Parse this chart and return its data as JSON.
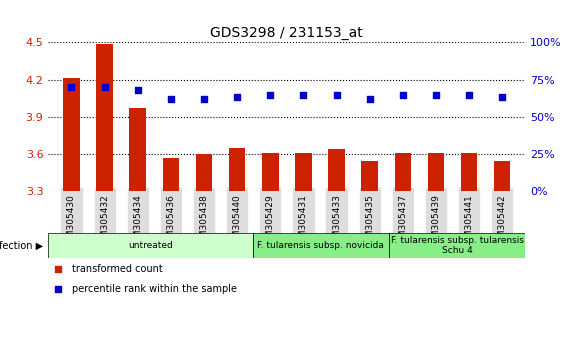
{
  "title": "GDS3298 / 231153_at",
  "samples": [
    "GSM305430",
    "GSM305432",
    "GSM305434",
    "GSM305436",
    "GSM305438",
    "GSM305440",
    "GSM305429",
    "GSM305431",
    "GSM305433",
    "GSM305435",
    "GSM305437",
    "GSM305439",
    "GSM305441",
    "GSM305442"
  ],
  "bar_values": [
    4.21,
    4.49,
    3.97,
    3.57,
    3.6,
    3.65,
    3.61,
    3.61,
    3.64,
    3.54,
    3.61,
    3.61,
    3.61,
    3.54
  ],
  "percentile_values": [
    70,
    70,
    68,
    62,
    62,
    63,
    65,
    65,
    65,
    62,
    65,
    65,
    65,
    63
  ],
  "ylim_left": [
    3.3,
    4.5
  ],
  "ylim_right": [
    0,
    100
  ],
  "bar_color": "#cc2200",
  "dot_color": "#0000cc",
  "grid_color": "#000000",
  "background_color": "#ffffff",
  "tick_label_color_left": "#cc2200",
  "tick_label_color_right": "#0000cc",
  "groups": [
    {
      "label": "untreated",
      "start": 0,
      "end": 6,
      "color": "#ccffcc"
    },
    {
      "label": "F. tularensis subsp. novicida",
      "start": 6,
      "end": 10,
      "color": "#88ee88"
    },
    {
      "label": "F. tularensis subsp. tularensis\nSchu 4",
      "start": 10,
      "end": 14,
      "color": "#88ee88"
    }
  ],
  "infection_label": "infection",
  "legend_items": [
    {
      "color": "#cc2200",
      "label": "transformed count"
    },
    {
      "color": "#0000cc",
      "label": "percentile rank within the sample"
    }
  ],
  "xlabel_fontsize": 6.5,
  "tick_fontsize": 8,
  "title_fontsize": 10,
  "group_fontsize": 6.5,
  "legend_fontsize": 7
}
